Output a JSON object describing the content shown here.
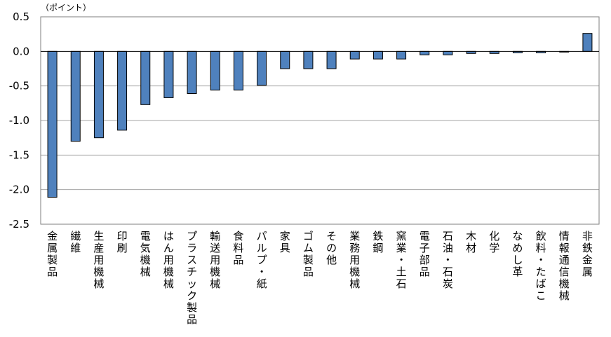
{
  "chart_data": {
    "type": "bar",
    "unit_label": "（ポイント）",
    "categories": [
      "金属製品",
      "繊維",
      "生産用機械",
      "印刷",
      "電気機械",
      "はん用機械",
      "プラスチック製品",
      "輸送用機械",
      "食料品",
      "パルプ・紙",
      "家具",
      "ゴム製品",
      "その他",
      "業務用機械",
      "鉄鋼",
      "窯業・土石",
      "電子部品",
      "石油・石炭",
      "木材",
      "化学",
      "なめし革",
      "飲料・たばこ",
      "情報通信機械",
      "非鉄金属"
    ],
    "values": [
      -2.11,
      -1.3,
      -1.25,
      -1.14,
      -0.77,
      -0.67,
      -0.61,
      -0.56,
      -0.56,
      -0.49,
      -0.25,
      -0.25,
      -0.25,
      -0.11,
      -0.11,
      -0.11,
      -0.05,
      -0.05,
      -0.03,
      -0.03,
      -0.02,
      -0.02,
      -0.01,
      0.26
    ],
    "ylim": [
      -2.5,
      0.5
    ],
    "yticks": [
      0.5,
      0.0,
      -0.5,
      -1.0,
      -1.5,
      -2.0,
      -2.5
    ],
    "ytick_labels": [
      "0.5",
      "0.0",
      "-0.5",
      "-1.0",
      "-1.5",
      "-2.0",
      "-2.5"
    ],
    "grid": true,
    "bar_color": "#4f81bd",
    "bar_border": "#000000",
    "grid_color": "#a6a6a6"
  }
}
